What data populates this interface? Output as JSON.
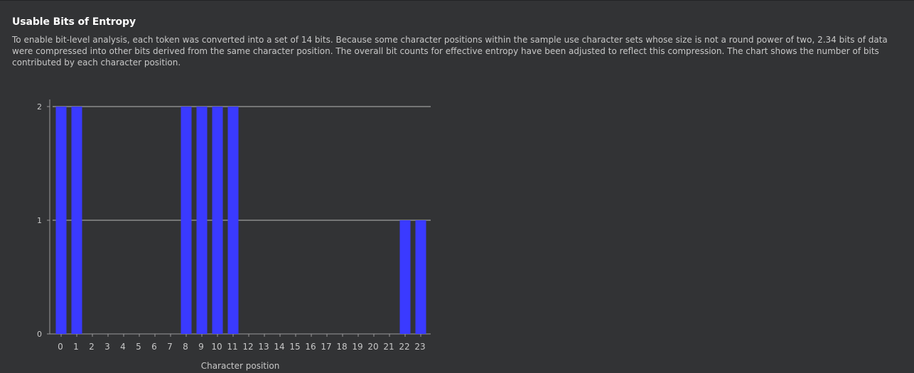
{
  "section": {
    "title": "Usable Bits of Entropy",
    "description": "To enable bit-level analysis, each token was converted into a set of 14 bits. Because some character positions within the sample use character sets whose size is not a round power of two, 2.34 bits of data were compressed into other bits derived from the same character position. The overall bit counts for effective entropy have been adjusted to reflect this compression. The chart shows the number of bits contributed by each character position."
  },
  "colors": {
    "bar": "#3a3aff",
    "gridline": "#b8b8b8",
    "axis": "#9a9a9a",
    "text": "#c8c8c8",
    "background": "#323335"
  },
  "chart_data": {
    "type": "bar",
    "xlabel": "Character position",
    "ylabel": "",
    "categories": [
      "0",
      "1",
      "2",
      "3",
      "4",
      "5",
      "6",
      "7",
      "8",
      "9",
      "10",
      "11",
      "12",
      "13",
      "14",
      "15",
      "16",
      "17",
      "18",
      "19",
      "20",
      "21",
      "22",
      "23"
    ],
    "values": [
      2,
      2,
      0,
      0,
      0,
      0,
      0,
      0,
      2,
      2,
      2,
      2,
      0,
      0,
      0,
      0,
      0,
      0,
      0,
      0,
      0,
      0,
      1,
      1
    ],
    "ylim": [
      0,
      2
    ],
    "yticks": [
      0,
      1,
      2
    ],
    "grid": true,
    "legend": "none"
  }
}
